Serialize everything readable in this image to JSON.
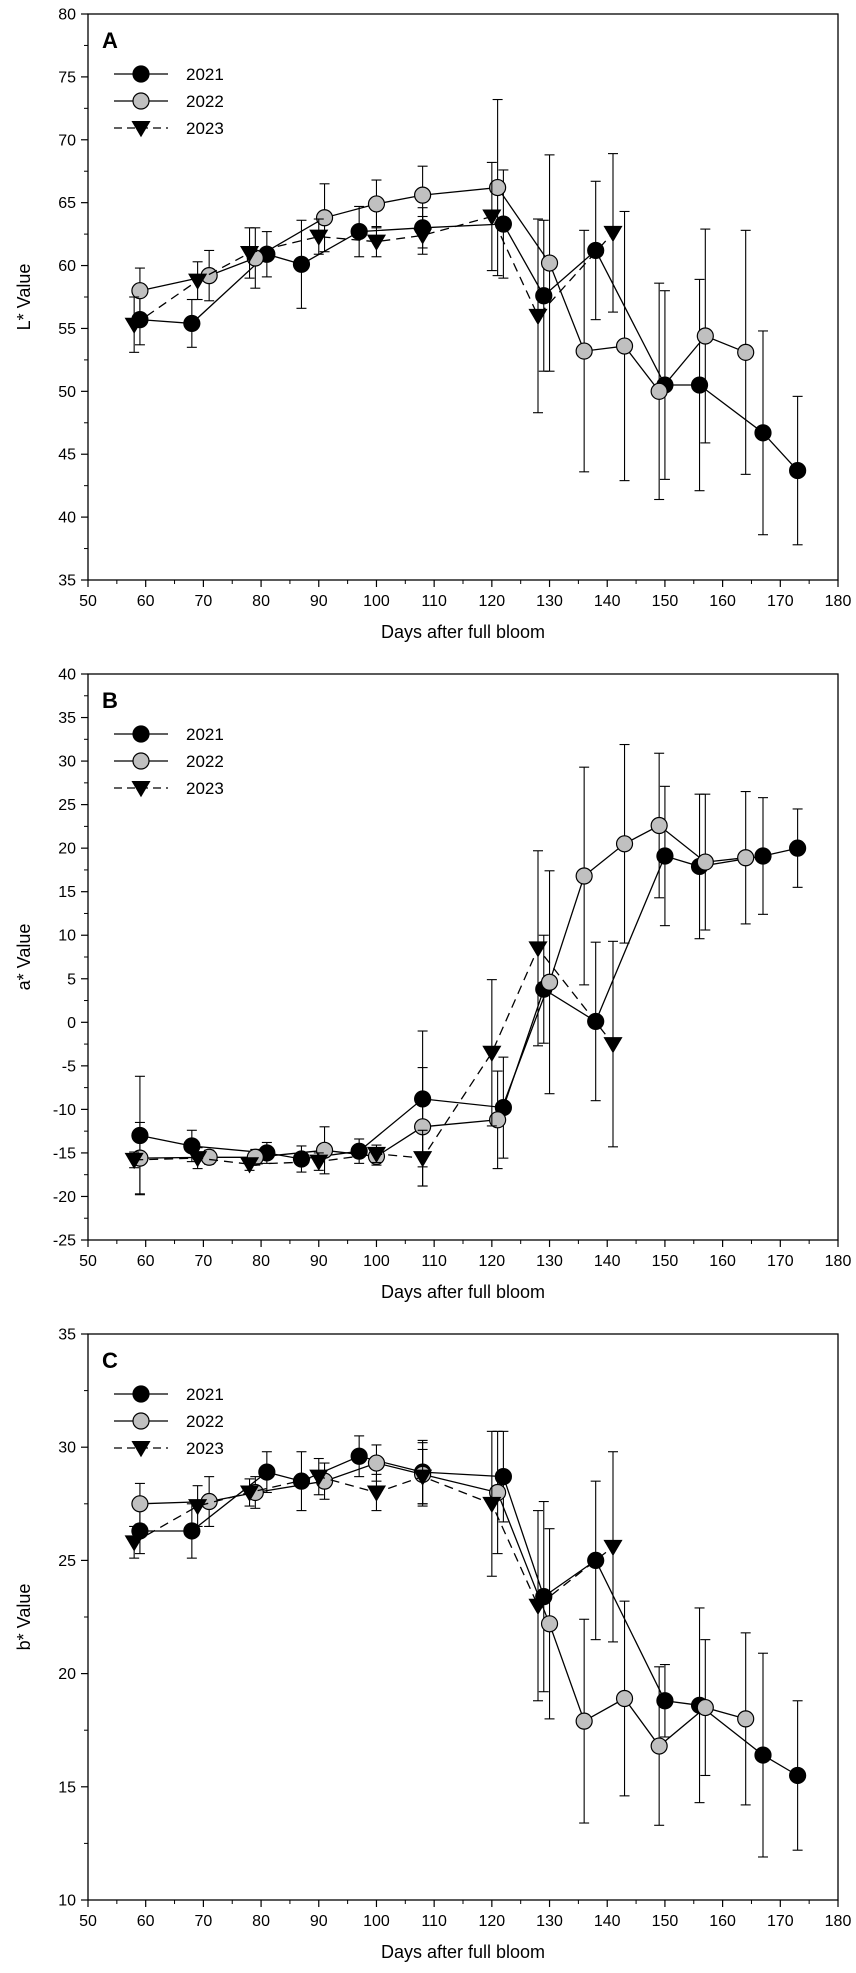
{
  "figure_id": "color-values-vs-days",
  "chart_data": [
    {
      "type": "line",
      "panel_label": "A",
      "xlabel": "Days after full bloom",
      "ylabel": "L* Value",
      "xlim": [
        50,
        180
      ],
      "ylim": [
        35,
        80
      ],
      "x_ticks": [
        "50",
        "60",
        "70",
        "80",
        "90",
        "100",
        "110",
        "120",
        "130",
        "140",
        "150",
        "160",
        "170",
        "180"
      ],
      "y_ticks": [
        "35",
        "40",
        "45",
        "50",
        "55",
        "60",
        "65",
        "70",
        "75",
        "80"
      ],
      "legend_position": "top-left",
      "series": [
        {
          "name": "2021",
          "marker": "circle",
          "fill": "#000000",
          "line": "solid",
          "points": [
            {
              "x": 59,
              "y": 55.7,
              "err": 2.0
            },
            {
              "x": 68,
              "y": 55.4,
              "err": 1.9
            },
            {
              "x": 81,
              "y": 60.9,
              "err": 1.8
            },
            {
              "x": 87,
              "y": 60.1,
              "err": 3.5
            },
            {
              "x": 97,
              "y": 62.7,
              "err": 2.0
            },
            {
              "x": 108,
              "y": 63.0,
              "err": 1.6
            },
            {
              "x": 122,
              "y": 63.3,
              "err": 4.3
            },
            {
              "x": 129,
              "y": 57.6,
              "err": 6.0
            },
            {
              "x": 138,
              "y": 61.2,
              "err": 5.5
            },
            {
              "x": 150,
              "y": 50.5,
              "err": 7.5
            },
            {
              "x": 156,
              "y": 50.5,
              "err": 8.4
            },
            {
              "x": 167,
              "y": 46.7,
              "err": 8.1
            },
            {
              "x": 173,
              "y": 43.7,
              "err": 5.9
            }
          ]
        },
        {
          "name": "2022",
          "marker": "circle",
          "fill": "#c0c0c0",
          "line": "solid",
          "points": [
            {
              "x": 59,
              "y": 58.0,
              "err": 1.8
            },
            {
              "x": 71,
              "y": 59.2,
              "err": 2.0
            },
            {
              "x": 79,
              "y": 60.6,
              "err": 2.4
            },
            {
              "x": 91,
              "y": 63.8,
              "err": 2.7
            },
            {
              "x": 100,
              "y": 64.9,
              "err": 1.9
            },
            {
              "x": 108,
              "y": 65.6,
              "err": 2.3
            },
            {
              "x": 121,
              "y": 66.2,
              "err": 7.0
            },
            {
              "x": 130,
              "y": 60.2,
              "err": 8.6
            },
            {
              "x": 136,
              "y": 53.2,
              "err": 9.6
            },
            {
              "x": 143,
              "y": 53.6,
              "err": 10.7
            },
            {
              "x": 149,
              "y": 50.0,
              "err": 8.6
            },
            {
              "x": 157,
              "y": 54.4,
              "err": 8.5
            },
            {
              "x": 164,
              "y": 53.1,
              "err": 9.7
            }
          ]
        },
        {
          "name": "2023",
          "marker": "triangle-down",
          "fill": "#000000",
          "line": "dashed",
          "points": [
            {
              "x": 58,
              "y": 55.3,
              "err": 2.2
            },
            {
              "x": 69,
              "y": 58.8,
              "err": 1.5
            },
            {
              "x": 78,
              "y": 61.0,
              "err": 2.0
            },
            {
              "x": 90,
              "y": 62.3,
              "err": 1.4
            },
            {
              "x": 100,
              "y": 61.9,
              "err": 1.2
            },
            {
              "x": 108,
              "y": 62.4,
              "err": 1.5
            },
            {
              "x": 120,
              "y": 63.9,
              "err": 4.3
            },
            {
              "x": 128,
              "y": 56.0,
              "err": 7.7
            },
            {
              "x": 141,
              "y": 62.6,
              "err": 6.3
            }
          ]
        }
      ]
    },
    {
      "type": "line",
      "panel_label": "B",
      "xlabel": "Days after full bloom",
      "ylabel": "a* Value",
      "xlim": [
        50,
        180
      ],
      "ylim": [
        -25,
        40
      ],
      "x_ticks": [
        "50",
        "60",
        "70",
        "80",
        "90",
        "100",
        "110",
        "120",
        "130",
        "140",
        "150",
        "160",
        "170",
        "180"
      ],
      "y_ticks": [
        "-25",
        "-20",
        "-15",
        "-10",
        "-5",
        "0",
        "5",
        "10",
        "15",
        "20",
        "25",
        "30",
        "35",
        "40"
      ],
      "legend_position": "top-left",
      "series": [
        {
          "name": "2021",
          "marker": "circle",
          "fill": "#000000",
          "line": "solid",
          "points": [
            {
              "x": 59,
              "y": -13.0,
              "err": 6.8
            },
            {
              "x": 68,
              "y": -14.2,
              "err": 1.8
            },
            {
              "x": 81,
              "y": -15.0,
              "err": 1.2
            },
            {
              "x": 87,
              "y": -15.7,
              "err": 1.5
            },
            {
              "x": 97,
              "y": -14.8,
              "err": 1.4
            },
            {
              "x": 108,
              "y": -8.8,
              "err": 7.8
            },
            {
              "x": 122,
              "y": -9.8,
              "err": 5.8
            },
            {
              "x": 129,
              "y": 3.8,
              "err": 6.2
            },
            {
              "x": 138,
              "y": 0.1,
              "err": 9.1
            },
            {
              "x": 150,
              "y": 19.1,
              "err": 8.0
            },
            {
              "x": 156,
              "y": 17.9,
              "err": 8.3
            },
            {
              "x": 167,
              "y": 19.1,
              "err": 6.7
            },
            {
              "x": 173,
              "y": 20.0,
              "err": 4.5
            }
          ]
        },
        {
          "name": "2022",
          "marker": "circle",
          "fill": "#c0c0c0",
          "line": "solid",
          "points": [
            {
              "x": 59,
              "y": -15.6,
              "err": 4.1
            },
            {
              "x": 71,
              "y": -15.5,
              "err": 0.8
            },
            {
              "x": 79,
              "y": -15.5,
              "err": 0.9
            },
            {
              "x": 91,
              "y": -14.7,
              "err": 2.7
            },
            {
              "x": 100,
              "y": -15.4,
              "err": 1.0
            },
            {
              "x": 108,
              "y": -12.0,
              "err": 6.8
            },
            {
              "x": 121,
              "y": -11.2,
              "err": 5.6
            },
            {
              "x": 130,
              "y": 4.6,
              "err": 12.8
            },
            {
              "x": 136,
              "y": 16.8,
              "err": 12.5
            },
            {
              "x": 143,
              "y": 20.5,
              "err": 11.4
            },
            {
              "x": 149,
              "y": 22.6,
              "err": 8.3
            },
            {
              "x": 157,
              "y": 18.4,
              "err": 7.8
            },
            {
              "x": 164,
              "y": 18.9,
              "err": 7.6
            }
          ]
        },
        {
          "name": "2023",
          "marker": "triangle-down",
          "fill": "#000000",
          "line": "dashed",
          "points": [
            {
              "x": 58,
              "y": -15.8,
              "err": 0.9
            },
            {
              "x": 69,
              "y": -15.6,
              "err": 1.2
            },
            {
              "x": 78,
              "y": -16.3,
              "err": 0.7
            },
            {
              "x": 90,
              "y": -16.0,
              "err": 1.0
            },
            {
              "x": 100,
              "y": -15.1,
              "err": 1.0
            },
            {
              "x": 108,
              "y": -15.6,
              "err": 3.2
            },
            {
              "x": 120,
              "y": -3.5,
              "err": 8.4
            },
            {
              "x": 128,
              "y": 8.5,
              "err": 11.2
            },
            {
              "x": 141,
              "y": -2.5,
              "err": 11.8
            }
          ]
        }
      ]
    },
    {
      "type": "line",
      "panel_label": "C",
      "xlabel": "Days after full bloom",
      "ylabel": "b* Value",
      "xlim": [
        50,
        180
      ],
      "ylim": [
        10,
        35
      ],
      "x_ticks": [
        "50",
        "60",
        "70",
        "80",
        "90",
        "100",
        "110",
        "120",
        "130",
        "140",
        "150",
        "160",
        "170",
        "180"
      ],
      "y_ticks": [
        "10",
        "15",
        "20",
        "25",
        "30",
        "35"
      ],
      "legend_position": "top-left",
      "series": [
        {
          "name": "2021",
          "marker": "circle",
          "fill": "#000000",
          "line": "solid",
          "points": [
            {
              "x": 59,
              "y": 26.3,
              "err": 1.0
            },
            {
              "x": 68,
              "y": 26.3,
              "err": 1.2
            },
            {
              "x": 81,
              "y": 28.9,
              "err": 0.9
            },
            {
              "x": 87,
              "y": 28.5,
              "err": 1.3
            },
            {
              "x": 97,
              "y": 29.6,
              "err": 0.9
            },
            {
              "x": 108,
              "y": 28.9,
              "err": 1.4
            },
            {
              "x": 122,
              "y": 28.7,
              "err": 2.0
            },
            {
              "x": 129,
              "y": 23.4,
              "err": 4.2
            },
            {
              "x": 138,
              "y": 25.0,
              "err": 3.5
            },
            {
              "x": 150,
              "y": 18.8,
              "err": 1.6
            },
            {
              "x": 156,
              "y": 18.6,
              "err": 4.3
            },
            {
              "x": 167,
              "y": 16.4,
              "err": 4.5
            },
            {
              "x": 173,
              "y": 15.5,
              "err": 3.3
            }
          ]
        },
        {
          "name": "2022",
          "marker": "circle",
          "fill": "#c0c0c0",
          "line": "solid",
          "points": [
            {
              "x": 59,
              "y": 27.5,
              "err": 0.9
            },
            {
              "x": 71,
              "y": 27.6,
              "err": 1.1
            },
            {
              "x": 79,
              "y": 28.0,
              "err": 0.7
            },
            {
              "x": 91,
              "y": 28.5,
              "err": 0.8
            },
            {
              "x": 100,
              "y": 29.3,
              "err": 0.8
            },
            {
              "x": 108,
              "y": 28.8,
              "err": 1.4
            },
            {
              "x": 121,
              "y": 28.0,
              "err": 2.7
            },
            {
              "x": 130,
              "y": 22.2,
              "err": 4.2
            },
            {
              "x": 136,
              "y": 17.9,
              "err": 4.5
            },
            {
              "x": 143,
              "y": 18.9,
              "err": 4.3
            },
            {
              "x": 149,
              "y": 16.8,
              "err": 3.5
            },
            {
              "x": 157,
              "y": 18.5,
              "err": 3.0
            },
            {
              "x": 164,
              "y": 18.0,
              "err": 3.8
            }
          ]
        },
        {
          "name": "2023",
          "marker": "triangle-down",
          "fill": "#000000",
          "line": "dashed",
          "points": [
            {
              "x": 58,
              "y": 25.8,
              "err": 0.7
            },
            {
              "x": 69,
              "y": 27.4,
              "err": 0.9
            },
            {
              "x": 78,
              "y": 28.0,
              "err": 0.6
            },
            {
              "x": 90,
              "y": 28.7,
              "err": 0.8
            },
            {
              "x": 100,
              "y": 28.0,
              "err": 0.8
            },
            {
              "x": 108,
              "y": 28.7,
              "err": 1.2
            },
            {
              "x": 120,
              "y": 27.5,
              "err": 3.2
            },
            {
              "x": 128,
              "y": 23.0,
              "err": 4.2
            },
            {
              "x": 141,
              "y": 25.6,
              "err": 4.2
            }
          ]
        }
      ]
    }
  ]
}
